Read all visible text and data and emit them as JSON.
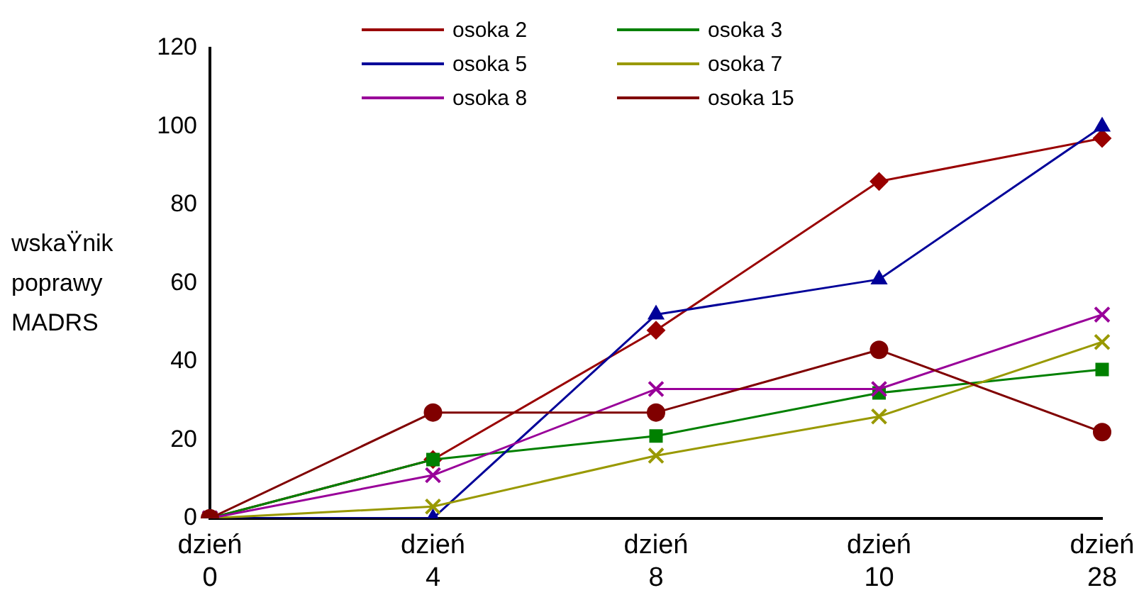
{
  "chart_data": {
    "type": "line",
    "ylabel": "wskaŸnik poprawy MADRS",
    "categories": [
      "dzień\n0",
      "dzień\n4",
      "dzień\n8",
      "dzień\n10",
      "dzień\n28"
    ],
    "ylim": [
      0,
      120
    ],
    "yticks": [
      0,
      20,
      40,
      60,
      80,
      100,
      120
    ],
    "grid": false,
    "legend": "top",
    "line_style": "solid",
    "series": [
      {
        "name": "osoka 2",
        "color": "#990000",
        "marker": "diamond",
        "values": [
          0,
          15,
          48,
          86,
          97
        ]
      },
      {
        "name": "osoka 3",
        "color": "#008000",
        "marker": "square",
        "values": [
          0,
          15,
          21,
          32,
          38
        ]
      },
      {
        "name": "osoka 5",
        "color": "#000099",
        "marker": "triangle",
        "values": [
          0,
          0,
          52,
          61,
          100
        ]
      },
      {
        "name": "osoka 7",
        "color": "#999900",
        "marker": "cross",
        "values": [
          0,
          3,
          16,
          26,
          45
        ]
      },
      {
        "name": "osoka 8",
        "color": "#990099",
        "marker": "cross",
        "values": [
          0,
          11,
          33,
          33,
          52
        ]
      },
      {
        "name": "osoka 15",
        "color": "#800000",
        "marker": "circle",
        "values": [
          0,
          27,
          27,
          43,
          22
        ]
      }
    ]
  }
}
